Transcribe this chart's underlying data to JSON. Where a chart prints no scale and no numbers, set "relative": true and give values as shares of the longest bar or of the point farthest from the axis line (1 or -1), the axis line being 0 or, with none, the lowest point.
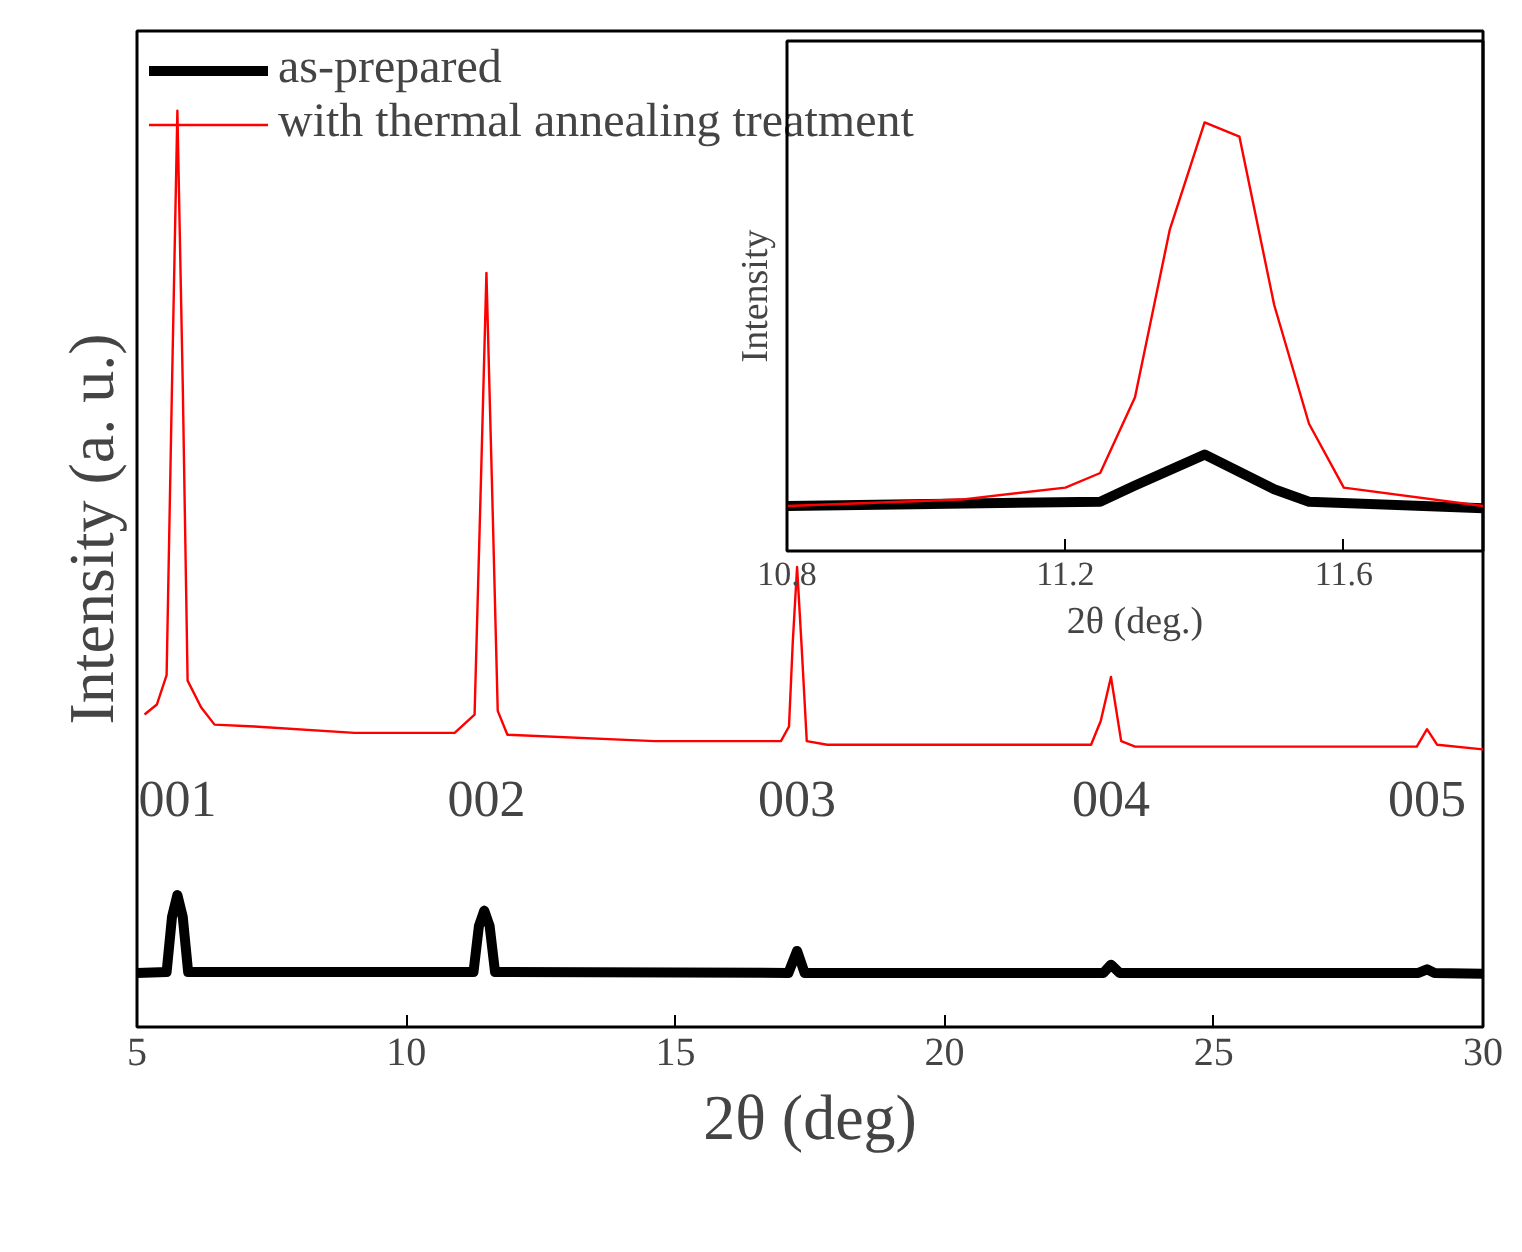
{
  "chart_data": [
    {
      "type": "line",
      "relative": true,
      "xlabel": "2θ (deg)",
      "ylabel": "Intensity (a. u.)",
      "xlim": [
        5,
        30
      ],
      "xticks": [
        5,
        10,
        15,
        20,
        25,
        30
      ],
      "legend": "top left",
      "grid": false,
      "series": [
        {
          "name": "as-prepared",
          "color": "#000000",
          "x": [
            5.0,
            5.55,
            5.65,
            5.75,
            5.85,
            5.95,
            11.25,
            11.35,
            11.45,
            11.55,
            11.65,
            17.1,
            17.26,
            17.4,
            22.95,
            23.09,
            23.25,
            28.8,
            28.96,
            29.1,
            30.0
          ],
          "values": [
            0.059,
            0.06,
            0.12,
            0.144,
            0.12,
            0.06,
            0.06,
            0.11,
            0.127,
            0.11,
            0.06,
            0.059,
            0.083,
            0.059,
            0.059,
            0.068,
            0.059,
            0.059,
            0.063,
            0.059,
            0.058
          ]
        },
        {
          "name": "with thermal annealing treatment",
          "color": "#ff0000",
          "x": [
            5.14,
            5.37,
            5.55,
            5.65,
            5.75,
            5.85,
            5.94,
            6.19,
            6.44,
            7.18,
            9.04,
            10.9,
            11.27,
            11.39,
            11.49,
            11.59,
            11.7,
            11.88,
            14.61,
            16.96,
            17.11,
            17.18,
            17.26,
            17.34,
            17.44,
            17.82,
            22.72,
            22.9,
            23.09,
            23.28,
            23.54,
            28.77,
            28.96,
            29.15,
            30.0
          ],
          "values": [
            0.341,
            0.352,
            0.384,
            0.7,
            1.0,
            0.7,
            0.378,
            0.349,
            0.33,
            0.328,
            0.321,
            0.321,
            0.341,
            0.6,
            0.823,
            0.6,
            0.345,
            0.319,
            0.312,
            0.312,
            0.328,
            0.42,
            0.502,
            0.42,
            0.312,
            0.308,
            0.308,
            0.334,
            0.382,
            0.312,
            0.306,
            0.306,
            0.325,
            0.308,
            0.303
          ]
        }
      ],
      "annotations": [
        "001",
        "002",
        "003",
        "004",
        "005"
      ]
    },
    {
      "type": "line",
      "relative": true,
      "xlabel": "2θ (deg.)",
      "ylabel": "Intensity",
      "xlim": [
        10.8,
        11.8
      ],
      "xticks": [
        10.8,
        11.2,
        11.6
      ],
      "grid": false,
      "series": [
        {
          "color": "#000000",
          "x": [
            10.8,
            11.25,
            11.3,
            11.4,
            11.5,
            11.55,
            11.8
          ],
          "values": [
            0.105,
            0.115,
            0.153,
            0.225,
            0.144,
            0.115,
            0.1
          ]
        },
        {
          "color": "#ff0000",
          "x": [
            10.8,
            11.05,
            11.2,
            11.25,
            11.3,
            11.35,
            11.4,
            11.45,
            11.5,
            11.55,
            11.6,
            11.8
          ],
          "values": [
            0.105,
            0.12,
            0.148,
            0.182,
            0.359,
            0.75,
            1.0,
            0.967,
            0.574,
            0.297,
            0.148,
            0.105
          ]
        }
      ]
    }
  ]
}
